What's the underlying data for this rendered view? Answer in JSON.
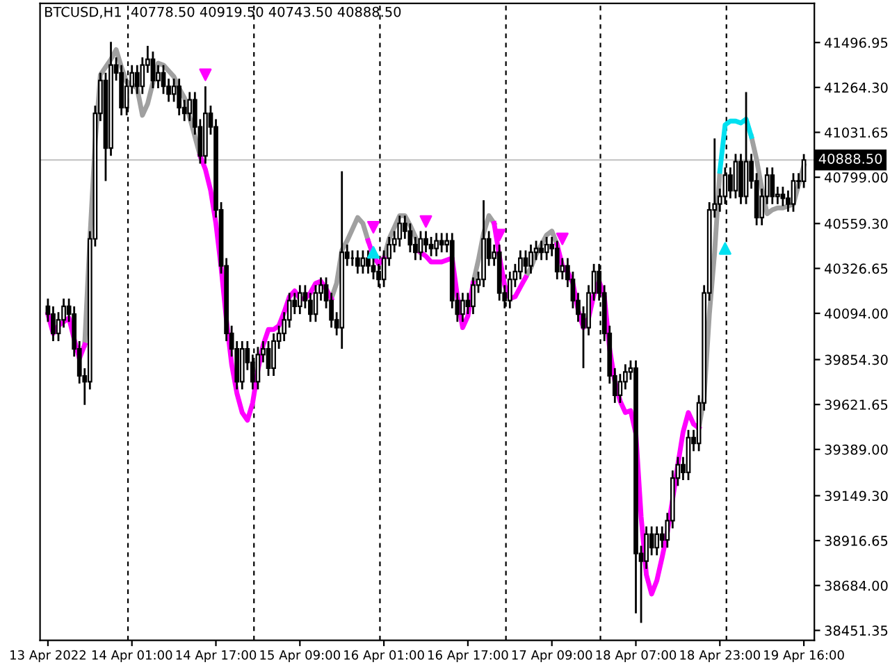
{
  "chart_data": {
    "type": "candlestick",
    "title": "BTCUSD,H1  40778.50 40919.50 40743.50 40888.50",
    "color": "#000000",
    "categories": [
      "13 Apr 2022",
      null,
      null,
      null,
      null,
      null,
      null,
      null,
      null,
      null,
      null,
      null,
      null,
      null,
      null,
      null,
      "14 Apr 01:00",
      null,
      null,
      null,
      null,
      null,
      null,
      null,
      null,
      null,
      null,
      null,
      null,
      null,
      null,
      null,
      "14 Apr 17:00",
      null,
      null,
      null,
      null,
      null,
      null,
      null,
      null,
      null,
      null,
      null,
      null,
      null,
      null,
      null,
      "15 Apr 09:00",
      null,
      null,
      null,
      null,
      null,
      null,
      null,
      null,
      null,
      null,
      null,
      null,
      null,
      null,
      null,
      "16 Apr 01:00",
      null,
      null,
      null,
      null,
      null,
      null,
      null,
      null,
      null,
      null,
      null,
      null,
      null,
      null,
      null,
      "16 Apr 17:00",
      null,
      null,
      null,
      null,
      null,
      null,
      null,
      null,
      null,
      null,
      null,
      null,
      null,
      null,
      null,
      "17 Apr 09:00",
      null,
      null,
      null,
      null,
      null,
      null,
      null,
      null,
      null,
      null,
      null,
      null,
      null,
      null,
      null,
      "18 Apr 07:00",
      null,
      null,
      null,
      null,
      null,
      null,
      null,
      null,
      null,
      null,
      null,
      null,
      null,
      null,
      null,
      "18 Apr 23:00",
      null,
      null,
      null,
      null,
      null,
      null,
      null,
      null,
      null,
      null,
      null,
      null,
      null,
      null,
      null,
      "19 Apr 16:00"
    ],
    "ohlc": [
      [
        40130,
        40170,
        40050,
        40090
      ],
      [
        40090,
        40130,
        39950,
        39990
      ],
      [
        39990,
        40100,
        39950,
        40060
      ],
      [
        40060,
        40170,
        40020,
        40130
      ],
      [
        40130,
        40170,
        40050,
        40090
      ],
      [
        40090,
        40130,
        39870,
        39910
      ],
      [
        39910,
        39950,
        39730,
        39770
      ],
      [
        39770,
        39810,
        39620,
        39740
      ],
      [
        39740,
        40520,
        39700,
        40480
      ],
      [
        40480,
        41170,
        40440,
        41130
      ],
      [
        41130,
        41340,
        41090,
        41300
      ],
      [
        41300,
        41340,
        40780,
        40950
      ],
      [
        40950,
        41500,
        40910,
        41380
      ],
      [
        41380,
        41420,
        41300,
        41340
      ],
      [
        41340,
        41380,
        41120,
        41160
      ],
      [
        41160,
        41310,
        41120,
        41270
      ],
      [
        41270,
        41380,
        41230,
        41340
      ],
      [
        41340,
        41380,
        41230,
        41270
      ],
      [
        41270,
        41420,
        41230,
        41380
      ],
      [
        41380,
        41480,
        41340,
        41410
      ],
      [
        41410,
        41450,
        41260,
        41300
      ],
      [
        41300,
        41380,
        41260,
        41340
      ],
      [
        41340,
        41380,
        41230,
        41270
      ],
      [
        41270,
        41310,
        41190,
        41230
      ],
      [
        41230,
        41310,
        41190,
        41270
      ],
      [
        41270,
        41310,
        41120,
        41160
      ],
      [
        41160,
        41200,
        41090,
        41130
      ],
      [
        41130,
        41240,
        41090,
        41200
      ],
      [
        41200,
        41240,
        41020,
        41060
      ],
      [
        41060,
        41100,
        40870,
        40910
      ],
      [
        40910,
        41270,
        40870,
        41130
      ],
      [
        41130,
        41170,
        41020,
        41060
      ],
      [
        41060,
        41100,
        40590,
        40630
      ],
      [
        40630,
        40670,
        40300,
        40340
      ],
      [
        40340,
        40380,
        39950,
        39990
      ],
      [
        39990,
        40030,
        39870,
        39910
      ],
      [
        39910,
        39950,
        39700,
        39740
      ],
      [
        39740,
        39950,
        39700,
        39910
      ],
      [
        39910,
        39950,
        39800,
        39840
      ],
      [
        39840,
        39880,
        39700,
        39740
      ],
      [
        39740,
        39920,
        39700,
        39880
      ],
      [
        39880,
        39950,
        39840,
        39910
      ],
      [
        39910,
        39950,
        39770,
        39810
      ],
      [
        39810,
        39990,
        39770,
        39950
      ],
      [
        39950,
        40030,
        39910,
        39990
      ],
      [
        39990,
        40100,
        39950,
        40060
      ],
      [
        40060,
        40200,
        40020,
        40160
      ],
      [
        40160,
        40200,
        40090,
        40130
      ],
      [
        40130,
        40240,
        40090,
        40200
      ],
      [
        40200,
        40240,
        40120,
        40160
      ],
      [
        40160,
        40200,
        40050,
        40090
      ],
      [
        40090,
        40240,
        40050,
        40200
      ],
      [
        40200,
        40280,
        40160,
        40240
      ],
      [
        40240,
        40280,
        40120,
        40160
      ],
      [
        40160,
        40200,
        40020,
        40060
      ],
      [
        40060,
        40100,
        39980,
        40020
      ],
      [
        40020,
        40830,
        39910,
        40410
      ],
      [
        40410,
        40450,
        40340,
        40380
      ],
      [
        40380,
        40420,
        40340,
        40380
      ],
      [
        40380,
        40420,
        40300,
        40340
      ],
      [
        40340,
        40420,
        40300,
        40380
      ],
      [
        40380,
        40420,
        40300,
        40340
      ],
      [
        40340,
        40380,
        40270,
        40310
      ],
      [
        40310,
        40350,
        40230,
        40270
      ],
      [
        40270,
        40420,
        40230,
        40380
      ],
      [
        40380,
        40490,
        40340,
        40450
      ],
      [
        40450,
        40520,
        40410,
        40480
      ],
      [
        40480,
        40600,
        40440,
        40560
      ],
      [
        40560,
        40600,
        40480,
        40520
      ],
      [
        40520,
        40560,
        40410,
        40450
      ],
      [
        40450,
        40490,
        40370,
        40410
      ],
      [
        40410,
        40520,
        40370,
        40480
      ],
      [
        40480,
        40520,
        40410,
        40450
      ],
      [
        40450,
        40490,
        40390,
        40430
      ],
      [
        40430,
        40510,
        40390,
        40470
      ],
      [
        40470,
        40510,
        40410,
        40450
      ],
      [
        40450,
        40510,
        40410,
        40470
      ],
      [
        40470,
        40510,
        40120,
        40160
      ],
      [
        40160,
        40200,
        40050,
        40090
      ],
      [
        40090,
        40200,
        40050,
        40160
      ],
      [
        40160,
        40200,
        40090,
        40130
      ],
      [
        40130,
        40280,
        40090,
        40240
      ],
      [
        40240,
        40310,
        40200,
        40270
      ],
      [
        40270,
        40680,
        40230,
        40480
      ],
      [
        40480,
        40520,
        40340,
        40380
      ],
      [
        40380,
        40450,
        40340,
        40410
      ],
      [
        40410,
        40450,
        40160,
        40200
      ],
      [
        40200,
        40240,
        40120,
        40160
      ],
      [
        40160,
        40310,
        40120,
        40270
      ],
      [
        40270,
        40350,
        40230,
        40310
      ],
      [
        40310,
        40420,
        40270,
        40380
      ],
      [
        40380,
        40420,
        40300,
        40340
      ],
      [
        40340,
        40450,
        40300,
        40410
      ],
      [
        40410,
        40470,
        40370,
        40430
      ],
      [
        40430,
        40470,
        40370,
        40410
      ],
      [
        40410,
        40490,
        40370,
        40450
      ],
      [
        40450,
        40490,
        40390,
        40430
      ],
      [
        40430,
        40470,
        40270,
        40310
      ],
      [
        40310,
        40380,
        40270,
        40340
      ],
      [
        40340,
        40380,
        40230,
        40270
      ],
      [
        40270,
        40310,
        40120,
        40160
      ],
      [
        40160,
        40200,
        40050,
        40090
      ],
      [
        40090,
        40130,
        39810,
        40020
      ],
      [
        40020,
        40240,
        39980,
        40200
      ],
      [
        40200,
        40350,
        40160,
        40310
      ],
      [
        40310,
        40350,
        40160,
        40200
      ],
      [
        40200,
        40240,
        39950,
        39990
      ],
      [
        39990,
        40030,
        39730,
        39770
      ],
      [
        39770,
        39810,
        39630,
        39670
      ],
      [
        39670,
        39780,
        39630,
        39740
      ],
      [
        39740,
        39830,
        39700,
        39790
      ],
      [
        39790,
        39850,
        39750,
        39810
      ],
      [
        39810,
        39850,
        38540,
        38850
      ],
      [
        38850,
        38890,
        38490,
        38810
      ],
      [
        38810,
        38990,
        38770,
        38950
      ],
      [
        38950,
        38990,
        38840,
        38880
      ],
      [
        38880,
        38990,
        38840,
        38950
      ],
      [
        38950,
        38990,
        38880,
        38920
      ],
      [
        38920,
        39060,
        38880,
        39020
      ],
      [
        39020,
        39280,
        38980,
        39240
      ],
      [
        39240,
        39350,
        39200,
        39310
      ],
      [
        39310,
        39350,
        39230,
        39270
      ],
      [
        39270,
        39490,
        39230,
        39450
      ],
      [
        39450,
        39490,
        39380,
        39420
      ],
      [
        39420,
        39670,
        39380,
        39630
      ],
      [
        39630,
        40240,
        39590,
        40200
      ],
      [
        40200,
        40670,
        40160,
        40630
      ],
      [
        40630,
        41000,
        40590,
        40660
      ],
      [
        40660,
        40740,
        40620,
        40700
      ],
      [
        40700,
        40850,
        40660,
        40810
      ],
      [
        40810,
        40850,
        40690,
        40730
      ],
      [
        40730,
        40920,
        40690,
        40880
      ],
      [
        40880,
        40920,
        40660,
        40700
      ],
      [
        40700,
        41240,
        40660,
        40880
      ],
      [
        40880,
        40920,
        40740,
        40780
      ],
      [
        40780,
        40820,
        40550,
        40590
      ],
      [
        40590,
        40740,
        40550,
        40700
      ],
      [
        40700,
        40850,
        40660,
        40810
      ],
      [
        40810,
        40850,
        40660,
        40700
      ],
      [
        40700,
        40750,
        40660,
        40710
      ],
      [
        40710,
        40750,
        40650,
        40690
      ],
      [
        40690,
        40730,
        40620,
        40660
      ],
      [
        40660,
        40820,
        40620,
        40780
      ],
      [
        40780,
        40820,
        40740,
        40778.5
      ],
      [
        40778.5,
        40919.5,
        40743.5,
        40888.5
      ]
    ],
    "series": [
      {
        "type": "line",
        "color": "#a0a0a0",
        "values": [
          null,
          null,
          null,
          null,
          null,
          null,
          null,
          39930,
          40480,
          40980,
          41330,
          41370,
          41410,
          41460,
          41370,
          41290,
          41280,
          41260,
          41120,
          41180,
          41290,
          41390,
          41380,
          41350,
          41320,
          41260,
          41210,
          41110,
          41010,
          40910,
          null,
          null,
          null,
          null,
          null,
          null,
          null,
          null,
          null,
          null,
          null,
          null,
          null,
          null,
          null,
          null,
          null,
          null,
          null,
          null,
          null,
          null,
          null,
          null,
          40170,
          40250,
          40420,
          40470,
          40530,
          40590,
          40560,
          40470,
          null,
          null,
          40380,
          40480,
          40540,
          40600,
          40600,
          40550,
          40490,
          40410,
          null,
          null,
          null,
          null,
          null,
          null,
          null,
          null,
          null,
          40250,
          40370,
          40510,
          40600,
          40560,
          null,
          null,
          null,
          null,
          null,
          40280,
          40330,
          40400,
          40450,
          40500,
          40520,
          40450,
          null,
          null,
          null,
          null,
          null,
          null,
          null,
          null,
          null,
          null,
          null,
          null,
          null,
          null,
          null,
          null,
          null,
          null,
          null,
          null,
          null,
          null,
          null,
          null,
          null,
          null,
          39500,
          39660,
          40090,
          40410,
          40830,
          null,
          null,
          null,
          null,
          null,
          41010,
          40890,
          40740,
          40610,
          40630,
          40640,
          40640,
          40650,
          40660,
          40760,
          40860
        ]
      },
      {
        "type": "line",
        "color": "#ff00ff",
        "values": [
          40090,
          39990,
          40030,
          40050,
          40070,
          39960,
          39860,
          39930,
          null,
          null,
          null,
          null,
          null,
          null,
          null,
          null,
          null,
          null,
          null,
          null,
          null,
          null,
          null,
          null,
          null,
          null,
          null,
          null,
          null,
          40910,
          40840,
          40730,
          40560,
          40330,
          40060,
          39830,
          39680,
          39580,
          39540,
          39630,
          39800,
          39930,
          40010,
          40010,
          40030,
          40100,
          40180,
          40210,
          40170,
          40170,
          40200,
          40250,
          40260,
          40220,
          40170,
          null,
          null,
          null,
          null,
          null,
          null,
          40470,
          40390,
          40350,
          40380,
          null,
          null,
          null,
          null,
          null,
          null,
          40410,
          40390,
          40360,
          40360,
          40360,
          40370,
          40380,
          40180,
          40020,
          40080,
          40250,
          null,
          null,
          null,
          40560,
          40390,
          40240,
          40170,
          40180,
          40230,
          40280,
          null,
          null,
          null,
          null,
          null,
          40450,
          40340,
          40310,
          40250,
          40110,
          40020,
          40070,
          40190,
          40260,
          40180,
          39910,
          39740,
          39640,
          39580,
          39590,
          39470,
          39040,
          38740,
          38640,
          38710,
          38830,
          38960,
          39130,
          39310,
          39480,
          39580,
          39520,
          39500,
          null,
          null,
          null,
          null,
          null,
          null,
          null,
          null,
          null,
          null,
          null,
          null,
          null,
          null,
          null,
          null,
          null,
          null,
          null,
          null
        ]
      },
      {
        "type": "line",
        "color": "#00e0f0",
        "values": [
          null,
          null,
          null,
          null,
          null,
          null,
          null,
          null,
          null,
          null,
          null,
          null,
          null,
          null,
          null,
          null,
          null,
          null,
          null,
          null,
          null,
          null,
          null,
          null,
          null,
          null,
          null,
          null,
          null,
          null,
          null,
          null,
          null,
          null,
          null,
          null,
          null,
          null,
          null,
          null,
          null,
          null,
          null,
          null,
          null,
          null,
          null,
          null,
          null,
          null,
          null,
          null,
          null,
          null,
          null,
          null,
          null,
          null,
          null,
          null,
          null,
          null,
          null,
          null,
          null,
          null,
          null,
          null,
          null,
          null,
          null,
          null,
          null,
          null,
          null,
          null,
          null,
          null,
          null,
          null,
          null,
          null,
          null,
          null,
          null,
          null,
          null,
          null,
          null,
          null,
          null,
          null,
          null,
          null,
          null,
          null,
          null,
          null,
          null,
          null,
          null,
          null,
          null,
          null,
          null,
          null,
          null,
          null,
          null,
          null,
          null,
          null,
          null,
          null,
          null,
          null,
          null,
          null,
          null,
          null,
          null,
          null,
          null,
          null,
          null,
          null,
          null,
          null,
          40830,
          41070,
          41090,
          41090,
          41080,
          41100,
          41010,
          null,
          null,
          null,
          null,
          null,
          null,
          null,
          null,
          null,
          null
        ]
      },
      {
        "type": "scatter",
        "color": "#ff00ff",
        "marker": "triangle_down",
        "values": [
          null,
          null,
          null,
          null,
          null,
          null,
          null,
          null,
          null,
          null,
          null,
          null,
          null,
          null,
          null,
          null,
          null,
          null,
          null,
          null,
          null,
          null,
          null,
          null,
          null,
          null,
          null,
          null,
          null,
          null,
          41330,
          null,
          null,
          null,
          null,
          null,
          null,
          null,
          null,
          null,
          null,
          null,
          null,
          null,
          null,
          null,
          null,
          null,
          null,
          null,
          null,
          null,
          null,
          null,
          null,
          null,
          null,
          null,
          null,
          null,
          null,
          null,
          40540,
          null,
          null,
          null,
          null,
          null,
          null,
          null,
          null,
          null,
          40570,
          null,
          null,
          null,
          null,
          null,
          null,
          null,
          null,
          null,
          null,
          null,
          null,
          null,
          40500,
          null,
          null,
          null,
          null,
          null,
          null,
          null,
          null,
          null,
          null,
          null,
          40480,
          null,
          null,
          null,
          null,
          null,
          null,
          null,
          null,
          null,
          null,
          null,
          null,
          null,
          null,
          null,
          null,
          null,
          null,
          null,
          null,
          null,
          null,
          null,
          null,
          null,
          null,
          null,
          null,
          null,
          null,
          null,
          null,
          null,
          null,
          null,
          null,
          null,
          null,
          null,
          null,
          null,
          null,
          null,
          null,
          null,
          null
        ]
      },
      {
        "type": "scatter",
        "color": "#00e0f0",
        "marker": "triangle",
        "values": [
          null,
          null,
          null,
          null,
          null,
          null,
          null,
          null,
          null,
          null,
          null,
          null,
          null,
          null,
          null,
          null,
          null,
          null,
          null,
          null,
          null,
          null,
          null,
          null,
          null,
          null,
          null,
          null,
          null,
          null,
          null,
          null,
          null,
          null,
          null,
          null,
          null,
          null,
          null,
          null,
          null,
          null,
          null,
          null,
          null,
          null,
          null,
          null,
          null,
          null,
          null,
          null,
          null,
          null,
          null,
          null,
          null,
          null,
          null,
          null,
          null,
          null,
          40410,
          null,
          null,
          null,
          null,
          null,
          null,
          null,
          null,
          null,
          null,
          null,
          null,
          null,
          null,
          null,
          null,
          null,
          null,
          null,
          null,
          null,
          null,
          null,
          null,
          null,
          null,
          null,
          null,
          null,
          null,
          null,
          null,
          null,
          null,
          null,
          null,
          null,
          null,
          null,
          null,
          null,
          null,
          null,
          null,
          null,
          null,
          null,
          null,
          null,
          null,
          null,
          null,
          null,
          null,
          null,
          null,
          null,
          null,
          null,
          null,
          null,
          null,
          null,
          null,
          null,
          null,
          40430,
          null,
          null,
          null,
          null,
          null,
          null,
          null,
          null,
          null,
          null,
          null,
          null,
          null,
          null,
          null
        ]
      }
    ],
    "ylim": [
      38400,
      41700
    ],
    "yticks": [
      {
        "value": 41496.95,
        "label": "41496.95"
      },
      {
        "value": 41264.3,
        "label": "41264.30"
      },
      {
        "value": 41031.65,
        "label": "41031.65"
      },
      {
        "value": 40799,
        "label": "40799.00"
      },
      {
        "value": 40559.3,
        "label": "40559.30"
      },
      {
        "value": 40326.65,
        "label": "40326.65"
      },
      {
        "value": 40094,
        "label": "40094.00"
      },
      {
        "value": 39854.3,
        "label": "39854.30"
      },
      {
        "value": 39621.65,
        "label": "39621.65"
      },
      {
        "value": 39389,
        "label": "39389.00"
      },
      {
        "value": 39149.3,
        "label": "39149.30"
      },
      {
        "value": 38916.65,
        "label": "38916.65"
      },
      {
        "value": 38684,
        "label": "38684.00"
      },
      {
        "value": 38451.35,
        "label": "38451.35"
      }
    ],
    "ref_lines": [
      {
        "axis": "y",
        "value": 40888.5,
        "label": "40888.50",
        "color": "#c0c0c0",
        "line_style": "solid"
      }
    ],
    "grid": false,
    "legend": false
  }
}
